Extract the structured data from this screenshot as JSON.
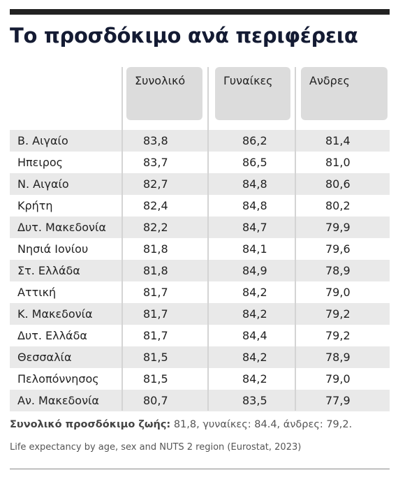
{
  "header": {
    "title": "Το προσδόκιμο ανά περιφέρεια"
  },
  "table": {
    "columns": [
      "Συνολικό",
      "Γυναίκες",
      "Ανδρες"
    ],
    "rows": [
      [
        "Β. Αιγαίο",
        "83,8",
        "86,2",
        "81,4"
      ],
      [
        "Ηπειρος",
        "83,7",
        "86,5",
        "81,0"
      ],
      [
        "Ν. Αιγαίο",
        "82,7",
        "84,8",
        "80,6"
      ],
      [
        "Κρήτη",
        "82,4",
        "84,8",
        "80,2"
      ],
      [
        "Δυτ. Μακεδονία",
        "82,2",
        "84,7",
        "79,9"
      ],
      [
        "Νησιά Ιονίου",
        "81,8",
        "84,1",
        "79,6"
      ],
      [
        "Στ. Ελλάδα",
        "81,8",
        "84,9",
        "78,9"
      ],
      [
        "Αττική",
        "81,7",
        "84,2",
        "79,0"
      ],
      [
        "Κ. Μακεδονία",
        "81,7",
        "84,2",
        "79,2"
      ],
      [
        "Δυτ. Ελλάδα",
        "81,7",
        "84,4",
        "79,2"
      ],
      [
        "Θεσσαλία",
        "81,5",
        "84,2",
        "78,9"
      ],
      [
        "Πελοπόννησος",
        "81,5",
        "84,2",
        "79,0"
      ],
      [
        "Αν. Μακεδονία",
        "80,7",
        "83,5",
        "77,9"
      ]
    ]
  },
  "footer": {
    "summary_label": "Συνολικό προσδόκιμο ζωής:",
    "summary_text": "81,8, γυναίκες: 84.4, άνδρες: 79,2.",
    "source": "Life expectancy by age, sex and NUTS 2 region (Eurostat, 2023)"
  }
}
